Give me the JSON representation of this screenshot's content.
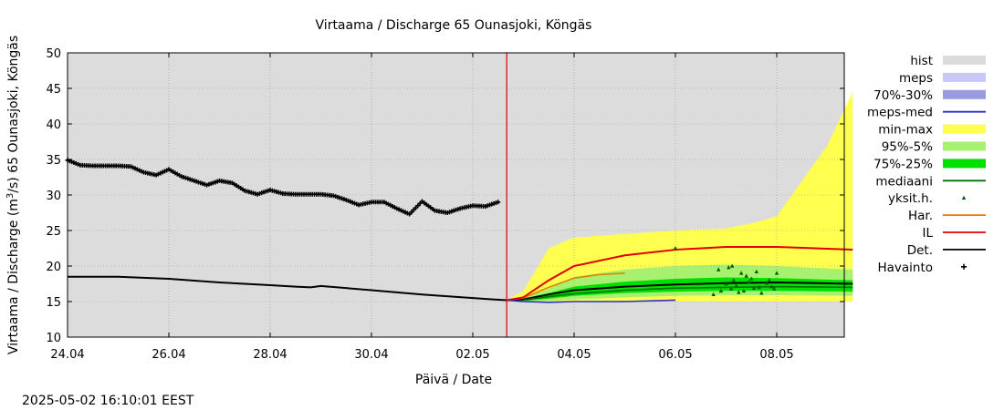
{
  "chart_data": {
    "type": "line",
    "title": "Virtaama / Discharge  65 Ounasjoki, Köngäs",
    "xlabel": "Päivä / Date",
    "ylabel_prefix": "Virtaama / Discharge (m",
    "ylabel_sup": "3",
    "ylabel_suffix": "/s)  65 Ounasjoki, Köngäs",
    "footer": "2025-05-02 16:10:01 EEST",
    "x_range_days": [
      "24.04",
      "09.05"
    ],
    "ylim": [
      10,
      50
    ],
    "y_ticks": [
      10,
      15,
      20,
      25,
      30,
      35,
      40,
      45,
      50
    ],
    "x_ticks": [
      {
        "day": 0,
        "label": "24.04"
      },
      {
        "day": 2,
        "label": "26.04"
      },
      {
        "day": 4,
        "label": "28.04"
      },
      {
        "day": 6,
        "label": "30.04"
      },
      {
        "day": 8,
        "label": "02.05"
      },
      {
        "day": 10,
        "label": "04.05"
      },
      {
        "day": 12,
        "label": "06.05"
      },
      {
        "day": 14,
        "label": "08.05"
      }
    ],
    "now_day": 8.67,
    "grid": true,
    "legend_position": "right",
    "colors": {
      "hist": "#dcdcdc",
      "meps": "#c8c8f8",
      "p70_30": "#9a9ae0",
      "meps_med": "#3030c0",
      "minmax": "#ffff50",
      "p95_5": "#a8f070",
      "p75_25": "#00e000",
      "mediaani": "#007000",
      "yksit": "#006000",
      "har": "#e08000",
      "il": "#e00000",
      "det": "#000000",
      "now": "#e00000"
    },
    "legend": [
      {
        "label": "hist",
        "kind": "box",
        "color": "#dcdcdc"
      },
      {
        "label": "meps",
        "kind": "box",
        "color": "#c8c8f8"
      },
      {
        "label": "70%-30%",
        "kind": "box",
        "color": "#9a9ae0"
      },
      {
        "label": "meps-med",
        "kind": "line",
        "color": "#3030c0"
      },
      {
        "label": "min-max",
        "kind": "box",
        "color": "#ffff50"
      },
      {
        "label": "95%-5%",
        "kind": "box",
        "color": "#a8f070"
      },
      {
        "label": "75%-25%",
        "kind": "box",
        "color": "#00e000"
      },
      {
        "label": "mediaani",
        "kind": "line",
        "color": "#007000"
      },
      {
        "label": "yksit.h.",
        "kind": "tri",
        "color": "#006000"
      },
      {
        "label": "Har.",
        "kind": "line",
        "color": "#e08000"
      },
      {
        "label": "IL",
        "kind": "line",
        "color": "#e00000"
      },
      {
        "label": "Det.",
        "kind": "line",
        "color": "#000000"
      },
      {
        "label": "Havainto",
        "kind": "plus",
        "color": "#000000"
      }
    ],
    "series": [
      {
        "name": "Havainto",
        "type": "markers",
        "x": [
          0,
          0.25,
          0.5,
          0.75,
          1,
          1.25,
          1.5,
          1.75,
          2,
          2.25,
          2.5,
          2.75,
          3,
          3.25,
          3.5,
          3.75,
          4,
          4.25,
          4.5,
          4.75,
          5,
          5.25,
          5.5,
          5.75,
          6,
          6.25,
          6.5,
          6.75,
          7,
          7.25,
          7.5,
          7.75,
          8,
          8.25,
          8.5
        ],
        "y": [
          34.9,
          34.2,
          34.1,
          34.1,
          34.1,
          34.0,
          33.2,
          32.8,
          33.6,
          32.6,
          32.0,
          31.4,
          32.0,
          31.7,
          30.6,
          30.1,
          30.7,
          30.2,
          30.1,
          30.1,
          30.1,
          29.9,
          29.3,
          28.6,
          29.0,
          29.0,
          28.1,
          27.3,
          29.1,
          27.8,
          27.5,
          28.1,
          28.5,
          28.4,
          29.0
        ]
      },
      {
        "name": "Det.",
        "type": "line",
        "x": [
          0,
          1,
          2,
          3,
          4,
          4.5,
          4.8,
          5,
          6,
          7,
          8,
          8.4,
          8.67,
          9,
          9.5,
          10,
          11,
          12,
          13,
          14,
          15.5
        ],
        "y": [
          18.5,
          18.5,
          18.2,
          17.7,
          17.3,
          17.1,
          17.0,
          17.2,
          16.6,
          16.0,
          15.5,
          15.3,
          15.2,
          15.3,
          16.0,
          16.6,
          17.1,
          17.4,
          17.6,
          17.7,
          17.5
        ]
      },
      {
        "name": "mediaani",
        "type": "line",
        "x": [
          9.0,
          9.5,
          10,
          11,
          12,
          13,
          14,
          15.5
        ],
        "y": [
          15.2,
          15.7,
          16.1,
          16.6,
          16.9,
          17.0,
          17.1,
          17.0
        ]
      },
      {
        "name": "IL",
        "type": "line",
        "x": [
          8.67,
          9.0,
          9.5,
          10,
          11,
          12,
          13,
          14,
          15.5
        ],
        "y": [
          15.2,
          15.6,
          18.0,
          20.0,
          21.5,
          22.3,
          22.7,
          22.7,
          22.3
        ]
      },
      {
        "name": "Har.",
        "type": "line",
        "x": [
          8.67,
          9.0,
          9.5,
          10,
          10.5,
          11.0
        ],
        "y": [
          15.2,
          15.5,
          17.0,
          18.3,
          18.8,
          19.0
        ]
      },
      {
        "name": "meps-med",
        "type": "line",
        "x": [
          8.67,
          9.0,
          9.5,
          10,
          11,
          12.0
        ],
        "y": [
          15.2,
          15.0,
          14.9,
          15.0,
          15.0,
          15.2
        ]
      },
      {
        "name": "yksit.h.",
        "type": "points",
        "x": [
          12.0,
          12.9,
          13.0,
          13.05,
          13.1,
          13.15,
          13.2,
          13.25,
          13.3,
          13.35,
          13.4,
          13.45,
          13.5,
          13.55,
          13.6,
          13.65,
          13.7,
          13.8,
          13.85,
          13.9,
          13.95,
          14.0,
          12.75,
          12.85,
          13.12
        ],
        "y": [
          22.5,
          16.5,
          17.5,
          19.8,
          16.8,
          18.0,
          17.2,
          16.3,
          19.0,
          16.5,
          18.6,
          17.8,
          18.2,
          16.9,
          19.2,
          17.0,
          16.2,
          17.6,
          18.0,
          17.1,
          16.8,
          19.0,
          16.0,
          19.5,
          20.0
        ]
      }
    ],
    "bands": [
      {
        "name": "min-max",
        "x": [
          8.67,
          9.0,
          9.5,
          10,
          11,
          12,
          13,
          13.5,
          14,
          14.5,
          15,
          15.5
        ],
        "upper": [
          15.2,
          16.5,
          22.5,
          24.0,
          24.5,
          25.0,
          25.3,
          26.0,
          27.0,
          32.0,
          37.0,
          44.5
        ],
        "lower": [
          15.2,
          15.0,
          15.0,
          15.0,
          15.0,
          15.0,
          15.0,
          15.0,
          15.0,
          15.0,
          15.0,
          15.0
        ]
      },
      {
        "name": "95%-5%",
        "x": [
          8.67,
          9.0,
          9.5,
          10,
          11,
          12,
          13,
          14,
          15.5
        ],
        "upper": [
          15.2,
          15.5,
          16.8,
          18.5,
          19.5,
          20.0,
          20.2,
          20.0,
          19.5
        ],
        "lower": [
          15.2,
          15.0,
          15.1,
          15.3,
          15.6,
          15.8,
          15.9,
          15.9,
          15.8
        ]
      },
      {
        "name": "75%-25%",
        "x": [
          8.67,
          9.0,
          9.5,
          10,
          11,
          12,
          13,
          14,
          15.5
        ],
        "upper": [
          15.2,
          15.4,
          16.2,
          17.1,
          17.8,
          18.2,
          18.4,
          18.3,
          18.0
        ],
        "lower": [
          15.2,
          15.1,
          15.4,
          15.8,
          16.2,
          16.4,
          16.5,
          16.5,
          16.4
        ]
      },
      {
        "name": "meps",
        "x": [
          8.67,
          9.0,
          9.5,
          10,
          11,
          12.0
        ],
        "upper": [
          15.2,
          15.1,
          15.0,
          15.1,
          15.1,
          15.3
        ],
        "lower": [
          15.2,
          14.9,
          14.8,
          14.9,
          14.9,
          15.1
        ]
      }
    ]
  }
}
